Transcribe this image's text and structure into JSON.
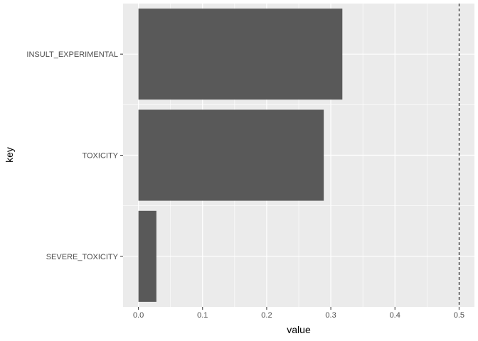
{
  "chart_data": {
    "type": "bar",
    "orientation": "horizontal",
    "xlabel": "value",
    "ylabel": "key",
    "categories": [
      "INSULT_EXPERIMENTAL",
      "TOXICITY",
      "SEVERE_TOXICITY"
    ],
    "values": [
      0.318,
      0.289,
      0.028
    ],
    "xlim": [
      -0.024,
      0.524
    ],
    "xticks": [
      0.0,
      0.1,
      0.2,
      0.3,
      0.4,
      0.5
    ],
    "xtick_labels": [
      "0.0",
      "0.1",
      "0.2",
      "0.3",
      "0.4",
      "0.5"
    ],
    "reference_line": {
      "x": 0.5,
      "style": "dashed"
    },
    "grid": true,
    "legend": "none",
    "colors": {
      "panel": "#ebebeb",
      "grid": "#ffffff",
      "bar": "#595959",
      "reference_line": "#000000"
    }
  }
}
